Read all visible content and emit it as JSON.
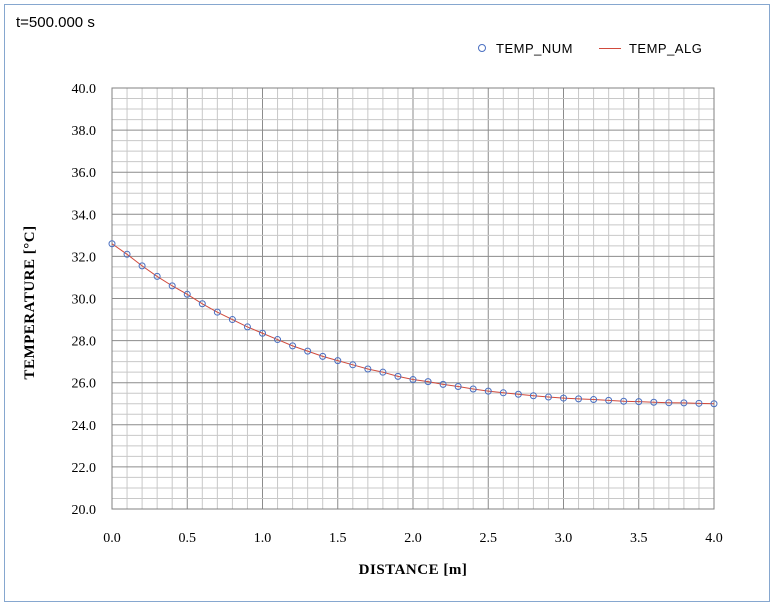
{
  "time_label": "t=500.000 s",
  "chart_data": {
    "type": "line",
    "title": "t=500.000 s",
    "xlabel": "DISTANCE [m]",
    "ylabel": "TEMPERATURE [°C]",
    "xlim": [
      0.0,
      4.0
    ],
    "ylim": [
      20.0,
      40.0
    ],
    "x_ticks": [
      "0.0",
      "0.5",
      "1.0",
      "1.5",
      "2.0",
      "2.5",
      "3.0",
      "3.5",
      "4.0"
    ],
    "y_ticks": [
      "20.0",
      "22.0",
      "24.0",
      "26.0",
      "28.0",
      "30.0",
      "32.0",
      "34.0",
      "36.0",
      "38.0",
      "40.0"
    ],
    "x_tick_values": [
      0.0,
      0.5,
      1.0,
      1.5,
      2.0,
      2.5,
      3.0,
      3.5,
      4.0
    ],
    "y_tick_values": [
      20,
      22,
      24,
      26,
      28,
      30,
      32,
      34,
      36,
      38,
      40
    ],
    "grid": true,
    "legend_position": "top-right",
    "series": [
      {
        "name": "TEMP_NUM",
        "style": "markers",
        "color": "#4a6fc1",
        "x": [
          0.0,
          0.1,
          0.2,
          0.3,
          0.4,
          0.5,
          0.6,
          0.7,
          0.8,
          0.9,
          1.0,
          1.1,
          1.2,
          1.3,
          1.4,
          1.5,
          1.6,
          1.7,
          1.8,
          1.9,
          2.0,
          2.1,
          2.2,
          2.3,
          2.4,
          2.5,
          2.6,
          2.7,
          2.8,
          2.9,
          3.0,
          3.1,
          3.2,
          3.3,
          3.4,
          3.5,
          3.6,
          3.7,
          3.8,
          3.9,
          4.0
        ],
        "y": [
          32.6,
          32.1,
          31.55,
          31.05,
          30.6,
          30.2,
          29.75,
          29.35,
          29.0,
          28.65,
          28.35,
          28.05,
          27.75,
          27.5,
          27.25,
          27.05,
          26.85,
          26.65,
          26.5,
          26.3,
          26.15,
          26.05,
          25.92,
          25.82,
          25.7,
          25.6,
          25.52,
          25.45,
          25.38,
          25.32,
          25.27,
          25.23,
          25.2,
          25.16,
          25.12,
          25.1,
          25.07,
          25.05,
          25.04,
          25.02,
          25.0
        ]
      },
      {
        "name": "TEMP_ALG",
        "style": "line",
        "color": "#d14a3c",
        "x": [
          0.0,
          0.1,
          0.2,
          0.3,
          0.4,
          0.5,
          0.6,
          0.7,
          0.8,
          0.9,
          1.0,
          1.1,
          1.2,
          1.3,
          1.4,
          1.5,
          1.6,
          1.7,
          1.8,
          1.9,
          2.0,
          2.1,
          2.2,
          2.3,
          2.4,
          2.5,
          2.6,
          2.7,
          2.8,
          2.9,
          3.0,
          3.1,
          3.2,
          3.3,
          3.4,
          3.5,
          3.6,
          3.7,
          3.8,
          3.9,
          4.0
        ],
        "y": [
          32.6,
          32.1,
          31.55,
          31.05,
          30.6,
          30.2,
          29.75,
          29.35,
          29.0,
          28.65,
          28.35,
          28.05,
          27.75,
          27.5,
          27.25,
          27.05,
          26.85,
          26.65,
          26.5,
          26.3,
          26.15,
          26.05,
          25.92,
          25.82,
          25.7,
          25.6,
          25.52,
          25.45,
          25.38,
          25.32,
          25.27,
          25.23,
          25.2,
          25.16,
          25.12,
          25.1,
          25.07,
          25.05,
          25.04,
          25.02,
          25.0
        ]
      }
    ]
  },
  "legend": {
    "num_label": "TEMP_NUM",
    "alg_label": "TEMP_ALG"
  }
}
